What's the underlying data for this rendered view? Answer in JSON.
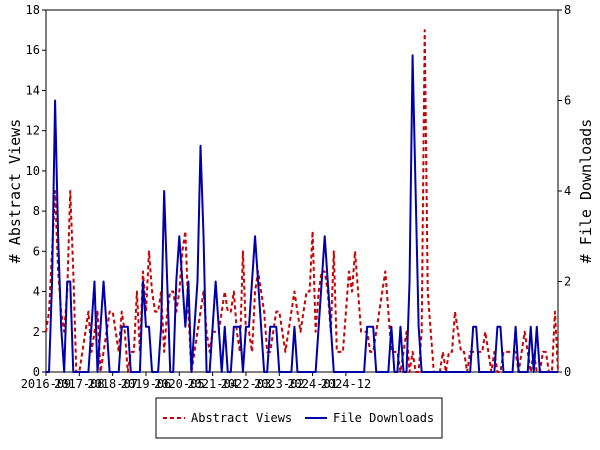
{
  "chart_data": {
    "type": "line",
    "x_tick_labels": [
      "2016-09",
      "2017-08",
      "2018-07",
      "2019-06",
      "2020-05",
      "2021-04",
      "2022-03",
      "2023-02",
      "2024-01",
      "2024-12"
    ],
    "y_left": {
      "label": "# Abstract Views",
      "range": [
        0,
        18
      ],
      "ticks": [
        0,
        2,
        4,
        6,
        8,
        10,
        12,
        14,
        16,
        18
      ]
    },
    "y_right": {
      "label": "# File Downloads",
      "range": [
        0,
        8
      ],
      "ticks": [
        0,
        2,
        4,
        6,
        8
      ]
    },
    "legend": {
      "placement": "bottom-center"
    },
    "series": [
      {
        "name": "Abstract Views",
        "axis": "left",
        "color": "#cc0000",
        "style": "dashed",
        "values": [
          2,
          3,
          6,
          9,
          5,
          3,
          2,
          4,
          9,
          5,
          0,
          0,
          1,
          2,
          3,
          1,
          2,
          3,
          0,
          1,
          2,
          3,
          3,
          2,
          1,
          3,
          2,
          0,
          1,
          1,
          4,
          1,
          5,
          3,
          6,
          4,
          3,
          3,
          4,
          1,
          3,
          4,
          4,
          3,
          4,
          6,
          7,
          3,
          0,
          1,
          2,
          3,
          4,
          2,
          1,
          2,
          2,
          2,
          3,
          4,
          3,
          3,
          4,
          2,
          1,
          6,
          2,
          2,
          1,
          4,
          5,
          4,
          3,
          1,
          1,
          2,
          3,
          3,
          2,
          1,
          2,
          3,
          4,
          3,
          2,
          3,
          4,
          4,
          7,
          2,
          4,
          5,
          5,
          4,
          2,
          6,
          1,
          1,
          1,
          3,
          5,
          4,
          6,
          4,
          2,
          2,
          2,
          1,
          1,
          2,
          3,
          4,
          5,
          3,
          1,
          1,
          1,
          0,
          1,
          2,
          0,
          1,
          0,
          0,
          2,
          17,
          4,
          2,
          0,
          0,
          0,
          1,
          0,
          1,
          1,
          3,
          2,
          1,
          1,
          0,
          1,
          1,
          1,
          1,
          1,
          2,
          1,
          0,
          1,
          0,
          0,
          1,
          1,
          1,
          1,
          1,
          0,
          1,
          2,
          1,
          0,
          1,
          0,
          0,
          1,
          1,
          0,
          0,
          3,
          0
        ]
      },
      {
        "name": "File Downloads",
        "axis": "right",
        "color": "#0000aa",
        "style": "solid",
        "values": [
          0,
          0,
          2,
          6,
          3,
          1,
          0,
          2,
          2,
          0,
          0,
          0,
          0,
          0,
          0,
          1,
          2,
          0,
          1,
          2,
          1,
          0,
          0,
          0,
          0,
          1,
          1,
          1,
          0,
          0,
          0,
          0,
          2,
          1,
          1,
          0,
          0,
          0,
          1,
          4,
          2,
          0,
          0,
          2,
          3,
          2,
          1,
          2,
          0,
          1,
          2,
          5,
          3,
          0,
          0,
          1,
          2,
          1,
          0,
          1,
          0,
          0,
          1,
          1,
          1,
          0,
          1,
          1,
          2,
          3,
          2,
          1,
          0,
          0,
          1,
          1,
          1,
          0,
          0,
          0,
          0,
          0,
          1,
          0,
          0,
          0,
          0,
          0,
          0,
          0,
          1,
          2,
          3,
          2,
          1,
          0,
          0,
          0,
          0,
          0,
          0,
          0,
          0,
          0,
          0,
          0,
          1,
          1,
          1,
          0,
          0,
          0,
          0,
          0,
          1,
          0,
          0,
          1,
          0,
          0,
          2,
          7,
          4,
          1,
          0,
          0,
          0,
          0,
          0,
          0,
          0,
          0,
          0,
          0,
          0,
          0,
          0,
          0,
          0,
          0,
          0,
          1,
          1,
          0,
          0,
          0,
          0,
          0,
          0,
          1,
          1,
          0,
          0,
          0,
          0,
          1,
          0,
          0,
          0,
          0,
          1,
          0,
          1,
          0,
          0,
          0,
          0,
          0,
          0,
          0
        ]
      }
    ]
  }
}
